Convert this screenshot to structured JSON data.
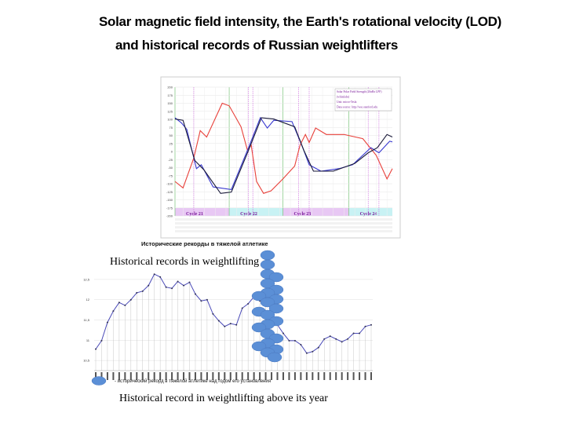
{
  "slide": {
    "title_line1": "Solar magnetic field intensity, the Earth's rotational velocity (LOD)",
    "title_line2": "and historical records of Russian weightlifters",
    "caption_records": "Historical records in weightlifting",
    "caption_bottom": "Historical record in weightlifting above its year"
  },
  "chart_data": [
    {
      "type": "line",
      "ylim": [
        -200,
        200
      ],
      "yticks": [
        "200",
        "175",
        "150",
        "125",
        "100",
        "75",
        "50",
        "25",
        "0",
        "-25",
        "-50",
        "-75",
        "-100",
        "-125",
        "-150",
        "-175",
        "-200"
      ],
      "grid": true,
      "legend_position": "top-right",
      "legend_text": [
        "Solar Polar Field Strength (20nHz LPF)",
        "(whitelabs)",
        "Unit: micro-Tesla",
        "Data source: http://wso.stanford.edu"
      ],
      "cycles": [
        {
          "label": "Cycle 21",
          "start": 1976.5,
          "end": 1986.6,
          "color": "#e8c8f4"
        },
        {
          "label": "Cycle 22",
          "start": 1986.6,
          "end": 1996.6,
          "color": "#c8f2f4"
        },
        {
          "label": "Cycle 23",
          "start": 1996.6,
          "end": 2008.9,
          "color": "#e8c8f4"
        },
        {
          "label": "Cycle 24",
          "start": 2008.9,
          "end": 2017,
          "color": "#c8f2f4"
        }
      ],
      "xlim": [
        1976.5,
        2017
      ],
      "series": [
        {
          "color": "#e8403a",
          "points": [
            [
              1976.5,
              -93
            ],
            [
              1978,
              -113
            ],
            [
              1980,
              -20
            ],
            [
              1981.2,
              65
            ],
            [
              1982.4,
              45
            ],
            [
              1985.3,
              150
            ],
            [
              1986.6,
              142
            ],
            [
              1988.8,
              77
            ],
            [
              1990,
              4
            ],
            [
              1990.7,
              20
            ],
            [
              1991.7,
              -93
            ],
            [
              1993,
              -130
            ],
            [
              1994.4,
              -122
            ],
            [
              1996.6,
              -85
            ],
            [
              1998.8,
              -45
            ],
            [
              1999.8,
              20
            ],
            [
              2000.8,
              53
            ],
            [
              2001.5,
              28
            ],
            [
              2002.7,
              73
            ],
            [
              2004.7,
              53
            ],
            [
              2008,
              53
            ],
            [
              2011.5,
              40
            ],
            [
              2014,
              -12
            ],
            [
              2016,
              -85
            ],
            [
              2017,
              -53
            ]
          ]
        },
        {
          "color": "#3a3ad0",
          "points": [
            [
              1976.5,
              105
            ],
            [
              1977.7,
              89
            ],
            [
              1978.7,
              69
            ],
            [
              1980.5,
              -53
            ],
            [
              1981.4,
              -41
            ],
            [
              1983.6,
              -110
            ],
            [
              1987,
              -118
            ],
            [
              1990.2,
              12
            ],
            [
              1992.4,
              105
            ],
            [
              1993.7,
              73
            ],
            [
              1994.9,
              97
            ],
            [
              1998.3,
              93
            ],
            [
              2000.3,
              12
            ],
            [
              2001.5,
              -41
            ],
            [
              2003.7,
              -61
            ],
            [
              2007.1,
              -53
            ],
            [
              2009.6,
              -41
            ],
            [
              2013,
              12
            ],
            [
              2014.5,
              -4
            ],
            [
              2016.5,
              32
            ],
            [
              2017,
              30
            ]
          ]
        },
        {
          "color": "#1a1a3a",
          "points": [
            [
              1976.5,
              101
            ],
            [
              1978,
              97
            ],
            [
              1980.2,
              -28
            ],
            [
              1981.9,
              -57
            ],
            [
              1985,
              -130
            ],
            [
              1987,
              -126
            ],
            [
              1988.4,
              -69
            ],
            [
              1990.2,
              4
            ],
            [
              1992.6,
              105
            ],
            [
              1994.9,
              101
            ],
            [
              1998.8,
              77
            ],
            [
              2000.5,
              4
            ],
            [
              2002.3,
              -61
            ],
            [
              2006,
              -61
            ],
            [
              2010,
              -37
            ],
            [
              2012.5,
              -4
            ],
            [
              2014.2,
              12
            ],
            [
              2016,
              53
            ],
            [
              2017,
              45
            ]
          ]
        }
      ],
      "below_title": "Исторические рекорды в тяжелой атлетике"
    },
    {
      "type": "line",
      "ylim": [
        10.25,
        12.75
      ],
      "yticks": [
        "12,5",
        "12",
        "11,5",
        "11",
        "10,5"
      ],
      "grid": true,
      "series": [
        {
          "color": "#4a4ab8",
          "values": [
            10.78,
            10.99,
            11.44,
            11.72,
            11.93,
            11.86,
            12.0,
            12.17,
            12.21,
            12.35,
            12.63,
            12.56,
            12.31,
            12.28,
            12.45,
            12.35,
            12.43,
            12.14,
            11.97,
            12.0,
            11.65,
            11.48,
            11.34,
            11.41,
            11.38,
            11.79,
            11.9,
            12.07,
            11.97,
            12.03,
            11.72,
            11.38,
            11.17,
            10.99,
            10.99,
            10.89,
            10.68,
            10.72,
            10.82,
            11.03,
            11.1,
            11.03,
            10.96,
            11.03,
            11.17,
            11.17,
            11.34,
            11.38
          ]
        }
      ],
      "legend_text": "- исторический рекорд в тяжелой атлетике над годом его установления",
      "marker_color": "#5b8fd6"
    }
  ]
}
